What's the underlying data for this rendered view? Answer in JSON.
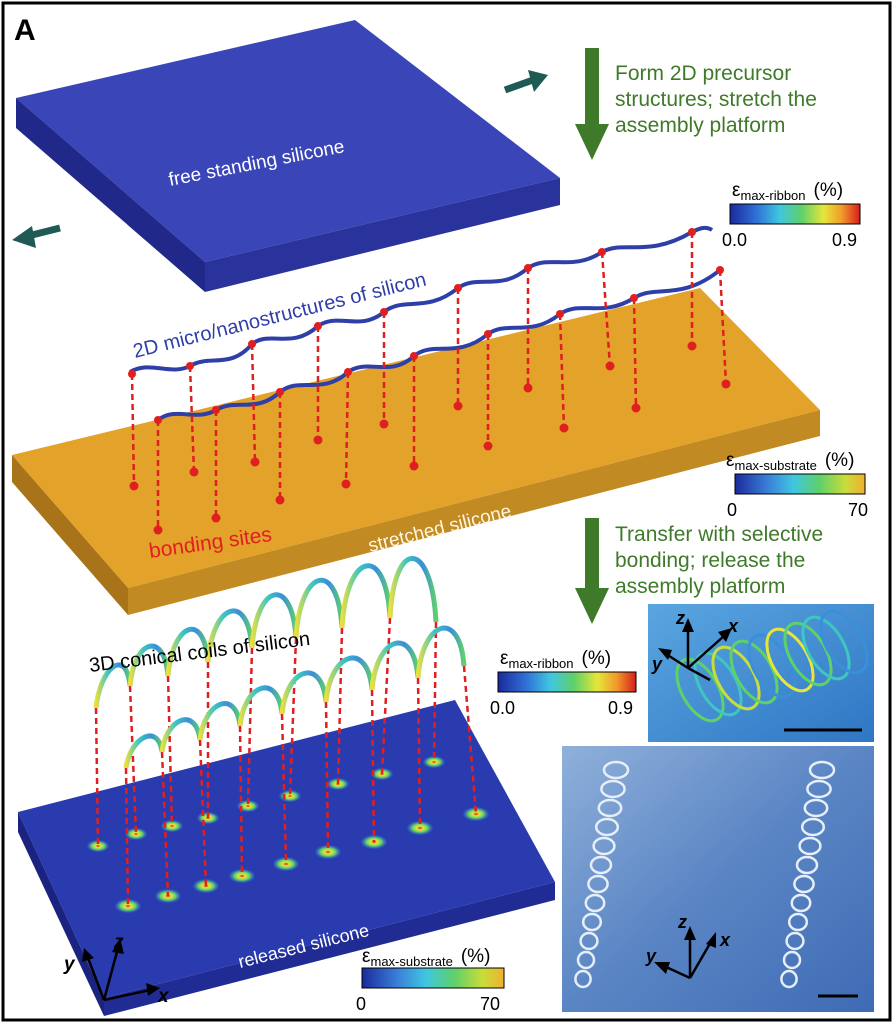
{
  "panel_label": "A",
  "steps": {
    "step1": [
      "Form 2D precursor",
      "structures; stretch the",
      "assembly platform"
    ],
    "step2": [
      "Transfer with selective",
      "bonding; release the",
      "assembly platform"
    ]
  },
  "labels": {
    "free_standing": "free standing silicone",
    "micro_nano": "2D micro/nanostructures of silicon",
    "bonding_sites": "bonding sites",
    "stretched": "stretched silicone",
    "coils": "3D conical coils of silicon",
    "released": "released silicone"
  },
  "colorbars": {
    "ribbon_top": {
      "symbol": "ε",
      "sub": "max-ribbon",
      "unit": "(%)",
      "min": "0.0",
      "max": "0.9"
    },
    "substrate_top": {
      "symbol": "ε",
      "sub": "max-substrate",
      "unit": "(%)",
      "min": "0",
      "max": "70"
    },
    "ribbon_mid": {
      "symbol": "ε",
      "sub": "max-ribbon",
      "unit": "(%)",
      "min": "0.0",
      "max": "0.9"
    },
    "substrate_bottom": {
      "symbol": "ε",
      "sub": "max-substrate",
      "unit": "(%)",
      "min": "0",
      "max": "70"
    }
  },
  "axes": {
    "x": "x",
    "y": "y",
    "z": "z"
  },
  "colors": {
    "silicone_blue": "#2c3aa6",
    "stretched_orange": "#e3a32a",
    "step_green": "#3f7a2a",
    "bond_red": "#e02020",
    "ribbon_blue": "#2e3fa8",
    "arrow_teal": "#1f5a55"
  }
}
